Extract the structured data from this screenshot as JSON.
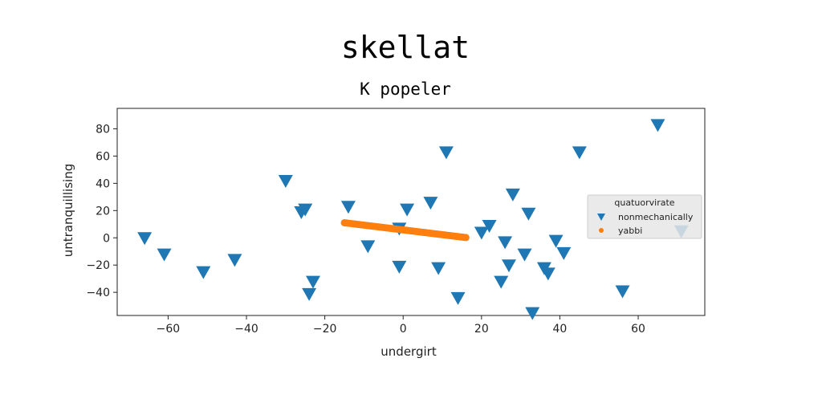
{
  "chart_data": {
    "type": "scatter",
    "title": "skellat",
    "subtitle": "K popeler",
    "xlabel": "undergirt",
    "ylabel": "untranquillising",
    "xlim": [
      -73,
      77
    ],
    "ylim": [
      -57,
      95
    ],
    "xticks": [
      -60,
      -40,
      -20,
      0,
      20,
      40,
      60
    ],
    "yticks": [
      -40,
      -20,
      0,
      20,
      40,
      60,
      80
    ],
    "xtick_labels": [
      "−60",
      "−40",
      "−20",
      "0",
      "20",
      "40",
      "60"
    ],
    "ytick_labels": [
      "−40",
      "−20",
      "0",
      "20",
      "40",
      "60",
      "80"
    ],
    "grid": false,
    "legend": {
      "title": "quatuorvirate",
      "placement": "right"
    },
    "series": [
      {
        "name": "nonmechanically",
        "marker": "triangle-down",
        "color": "#1f77b4",
        "points": [
          [
            -66,
            0
          ],
          [
            -61,
            -12
          ],
          [
            -51,
            -25
          ],
          [
            -43,
            -16
          ],
          [
            -30,
            42
          ],
          [
            -26,
            19
          ],
          [
            -25,
            21
          ],
          [
            -24,
            -41
          ],
          [
            -23,
            -32
          ],
          [
            -14,
            23
          ],
          [
            -9,
            -6
          ],
          [
            -1,
            7
          ],
          [
            -1,
            -21
          ],
          [
            1,
            21
          ],
          [
            7,
            26
          ],
          [
            9,
            -22
          ],
          [
            11,
            63
          ],
          [
            14,
            -44
          ],
          [
            20,
            4
          ],
          [
            22,
            9
          ],
          [
            25,
            -32
          ],
          [
            26,
            -3
          ],
          [
            27,
            -20
          ],
          [
            28,
            32
          ],
          [
            31,
            -12
          ],
          [
            32,
            18
          ],
          [
            33,
            -55
          ],
          [
            36,
            -22
          ],
          [
            37,
            -26
          ],
          [
            39,
            -2
          ],
          [
            41,
            -11
          ],
          [
            45,
            63
          ],
          [
            56,
            -39
          ],
          [
            65,
            83
          ],
          [
            71,
            5
          ]
        ]
      },
      {
        "name": "yabbi",
        "marker": "circle",
        "color": "#ff7f0e",
        "x_range": [
          -15,
          16
        ],
        "line": {
          "slope": -0.35,
          "intercept": 5.8
        },
        "n_points": 60
      }
    ]
  }
}
